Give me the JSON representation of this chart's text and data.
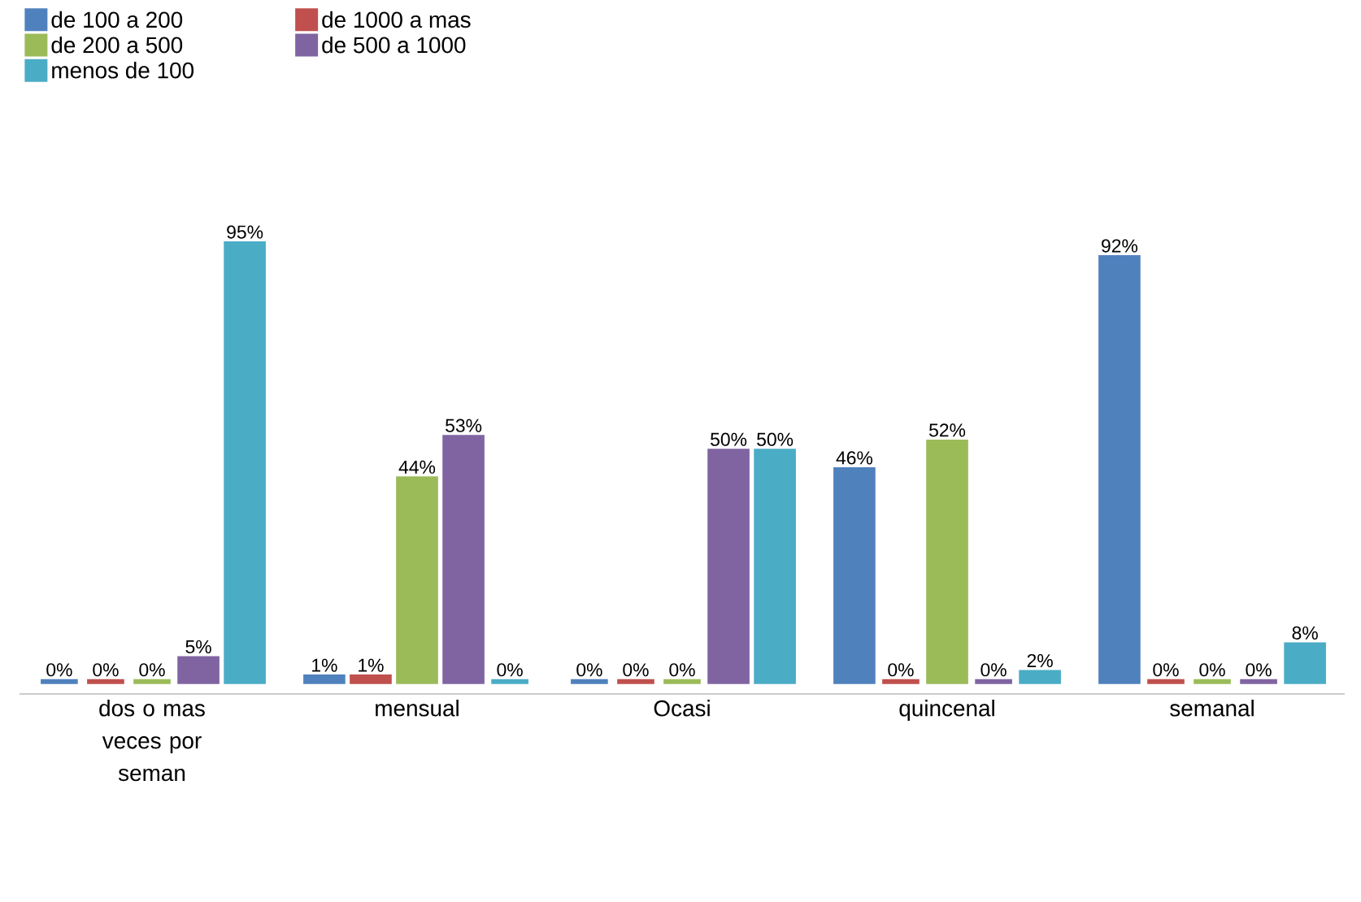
{
  "chart_data": {
    "type": "bar",
    "categories": [
      "dos o mas veces por seman",
      "mensual",
      "Ocasi",
      "quincenal",
      "semanal"
    ],
    "legend": "top left",
    "series": [
      {
        "name": "de 100 a 200",
        "color": "#4f81bd",
        "values": [
          0,
          1,
          0,
          46,
          92
        ],
        "value_labels": [
          "0%",
          "1%",
          "0%",
          "46%",
          "92%"
        ]
      },
      {
        "name": "de 1000 a mas",
        "color": "#c0504d",
        "values": [
          0,
          1,
          0,
          0,
          0
        ],
        "value_labels": [
          "0%",
          "1%",
          "0%",
          "0%",
          "0%"
        ]
      },
      {
        "name": "de 200 a 500",
        "color": "#9bbb59",
        "values": [
          0,
          44,
          0,
          52,
          0
        ],
        "value_labels": [
          "0%",
          "44%",
          "0%",
          "52%",
          "0%"
        ]
      },
      {
        "name": "de 500 a 1000",
        "color": "#8064a2",
        "values": [
          5,
          53,
          50,
          0,
          0
        ],
        "value_labels": [
          "5%",
          "53%",
          "50%",
          "0%",
          "0%"
        ]
      },
      {
        "name": "menos de 100",
        "color": "#4bacc6",
        "values": [
          95,
          0,
          50,
          2,
          8
        ],
        "value_labels": [
          "95%",
          "0%",
          "50%",
          "2%",
          "8%"
        ]
      }
    ]
  }
}
